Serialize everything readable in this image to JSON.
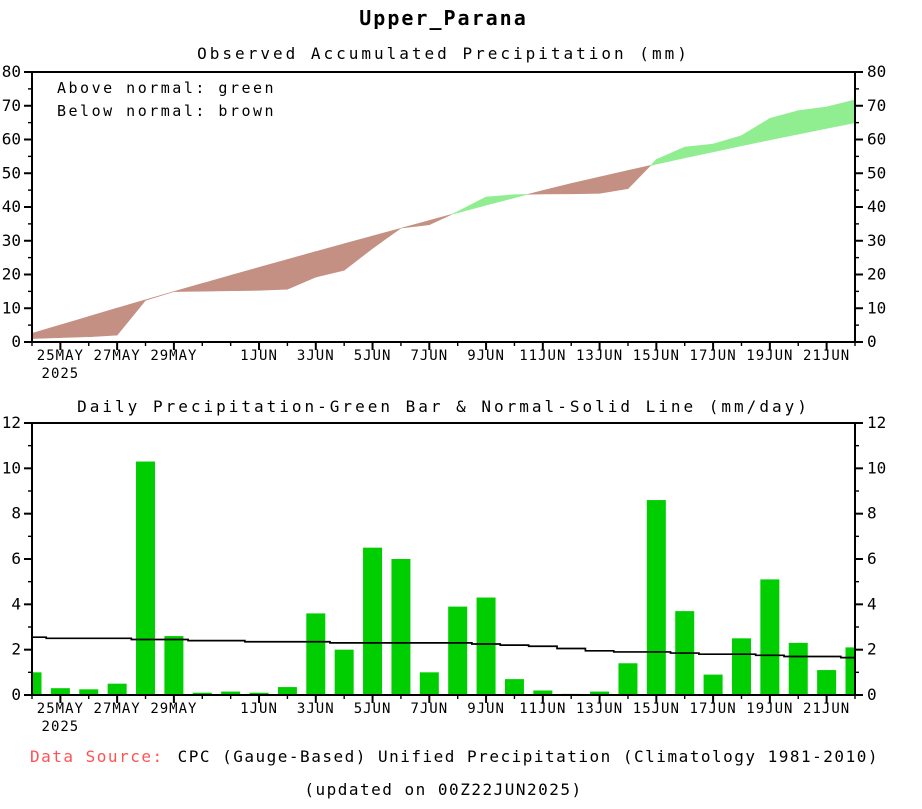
{
  "page": {
    "title": "Upper_Parana",
    "background": "#ffffff"
  },
  "footer": {
    "source_label": "Data Source:",
    "source_label_color": "#ff5252",
    "source_text": "CPC (Gauge-Based) Unified Precipitation (Climatology 1981-2010)",
    "updated_text": "(updated on 00Z22JUN2025)"
  },
  "colors": {
    "bar_green": "#00ce00",
    "above_normal_green": "#90ee90",
    "below_normal_brown": "#c49084",
    "axis_black": "#000000"
  },
  "chart_data": [
    {
      "type": "area",
      "title": "Observed Accumulated Precipitation (mm)",
      "legend": [
        {
          "label": "Above normal: green",
          "color": "#90ee90"
        },
        {
          "label": "Below normal: brown",
          "color": "#c49084"
        }
      ],
      "legend_position": "top-left",
      "grid": false,
      "ylim": [
        0,
        80
      ],
      "yticks": [
        0,
        10,
        20,
        30,
        40,
        50,
        60,
        70,
        80
      ],
      "yminor_step": 5,
      "x": [
        "24MAY",
        "25MAY",
        "26MAY",
        "27MAY",
        "28MAY",
        "29MAY",
        "30MAY",
        "31MAY",
        "1JUN",
        "2JUN",
        "3JUN",
        "4JUN",
        "5JUN",
        "6JUN",
        "7JUN",
        "8JUN",
        "9JUN",
        "10JUN",
        "11JUN",
        "12JUN",
        "13JUN",
        "14JUN",
        "15JUN",
        "16JUN",
        "17JUN",
        "18JUN",
        "19JUN",
        "20JUN",
        "21JUN",
        "22JUN"
      ],
      "xticks": [
        {
          "i": 1,
          "label": "25MAY"
        },
        {
          "i": 3,
          "label": "27MAY"
        },
        {
          "i": 5,
          "label": "29MAY"
        },
        {
          "i": 8,
          "label": "1JUN"
        },
        {
          "i": 10,
          "label": "3JUN"
        },
        {
          "i": 12,
          "label": "5JUN"
        },
        {
          "i": 14,
          "label": "7JUN"
        },
        {
          "i": 16,
          "label": "9JUN"
        },
        {
          "i": 18,
          "label": "11JUN"
        },
        {
          "i": 20,
          "label": "13JUN"
        },
        {
          "i": 22,
          "label": "15JUN"
        },
        {
          "i": 24,
          "label": "17JUN"
        },
        {
          "i": 26,
          "label": "19JUN"
        },
        {
          "i": 28,
          "label": "21JUN"
        }
      ],
      "year_label": "2025",
      "series": [
        {
          "name": "observed_accumulated",
          "values": [
            1.0,
            1.3,
            1.55,
            2.05,
            12.35,
            14.95,
            15.05,
            15.2,
            15.3,
            15.65,
            19.25,
            21.25,
            27.75,
            33.75,
            34.75,
            38.65,
            42.95,
            43.65,
            43.85,
            43.9,
            44.05,
            45.45,
            54.05,
            57.75,
            58.65,
            61.15,
            66.25,
            68.55,
            69.65,
            71.75
          ]
        },
        {
          "name": "normal_accumulated",
          "values": [
            2.55,
            5.05,
            7.55,
            10.05,
            12.5,
            14.95,
            17.35,
            19.75,
            22.1,
            24.45,
            26.8,
            29.1,
            31.4,
            33.7,
            36.0,
            38.3,
            40.55,
            42.75,
            44.9,
            46.95,
            48.9,
            50.8,
            52.7,
            54.55,
            56.35,
            58.15,
            59.9,
            61.6,
            63.3,
            64.95
          ]
        }
      ]
    },
    {
      "type": "bar",
      "title": "Daily Precipitation-Green Bar & Normal-Solid Line (mm/day)",
      "grid": false,
      "ylim": [
        0,
        12
      ],
      "yticks": [
        0,
        2,
        4,
        6,
        8,
        10,
        12
      ],
      "yminor_step": 1,
      "categories": [
        "24MAY",
        "25MAY",
        "26MAY",
        "27MAY",
        "28MAY",
        "29MAY",
        "30MAY",
        "31MAY",
        "1JUN",
        "2JUN",
        "3JUN",
        "4JUN",
        "5JUN",
        "6JUN",
        "7JUN",
        "8JUN",
        "9JUN",
        "10JUN",
        "11JUN",
        "12JUN",
        "13JUN",
        "14JUN",
        "15JUN",
        "16JUN",
        "17JUN",
        "18JUN",
        "19JUN",
        "20JUN",
        "21JUN",
        "22JUN"
      ],
      "xticks": [
        {
          "i": 1,
          "label": "25MAY"
        },
        {
          "i": 3,
          "label": "27MAY"
        },
        {
          "i": 5,
          "label": "29MAY"
        },
        {
          "i": 8,
          "label": "1JUN"
        },
        {
          "i": 10,
          "label": "3JUN"
        },
        {
          "i": 12,
          "label": "5JUN"
        },
        {
          "i": 14,
          "label": "7JUN"
        },
        {
          "i": 16,
          "label": "9JUN"
        },
        {
          "i": 18,
          "label": "11JUN"
        },
        {
          "i": 20,
          "label": "13JUN"
        },
        {
          "i": 22,
          "label": "15JUN"
        },
        {
          "i": 24,
          "label": "17JUN"
        },
        {
          "i": 26,
          "label": "19JUN"
        },
        {
          "i": 28,
          "label": "21JUN"
        }
      ],
      "year_label": "2025",
      "series": [
        {
          "name": "daily_precipitation",
          "type": "bar",
          "color": "#00ce00",
          "values": [
            1.0,
            0.3,
            0.25,
            0.5,
            10.3,
            2.6,
            0.1,
            0.15,
            0.1,
            0.35,
            3.6,
            2.0,
            6.5,
            6.0,
            1.0,
            3.9,
            4.3,
            0.7,
            0.2,
            0.05,
            0.15,
            1.4,
            8.6,
            3.7,
            0.9,
            2.5,
            5.1,
            2.3,
            1.1,
            2.1
          ]
        },
        {
          "name": "normal",
          "type": "line",
          "color": "#000000",
          "values": [
            2.55,
            2.5,
            2.5,
            2.5,
            2.45,
            2.45,
            2.4,
            2.4,
            2.35,
            2.35,
            2.35,
            2.3,
            2.3,
            2.3,
            2.3,
            2.3,
            2.25,
            2.2,
            2.15,
            2.05,
            1.95,
            1.9,
            1.9,
            1.85,
            1.8,
            1.8,
            1.75,
            1.7,
            1.7,
            1.65
          ]
        }
      ]
    }
  ]
}
